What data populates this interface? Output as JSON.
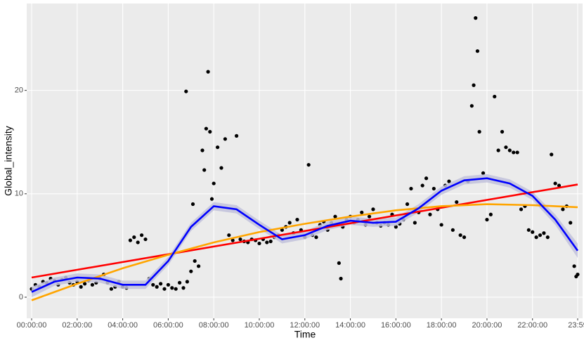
{
  "chart_data": {
    "type": "scatter",
    "x_label": "Time",
    "y_label": "Global_intensity",
    "xlim": [
      -13,
      1452
    ],
    "ylim": [
      -2.04,
      28.4
    ],
    "xticks": [
      {
        "value": 0,
        "label": "00:00:00"
      },
      {
        "value": 120,
        "label": "02:00:00"
      },
      {
        "value": 240,
        "label": "04:00:00"
      },
      {
        "value": 360,
        "label": "06:00:00"
      },
      {
        "value": 480,
        "label": "08:00:00"
      },
      {
        "value": 600,
        "label": "10:00:00"
      },
      {
        "value": 720,
        "label": "12:00:00"
      },
      {
        "value": 840,
        "label": "14:00:00"
      },
      {
        "value": 960,
        "label": "16:00:00"
      },
      {
        "value": 1080,
        "label": "18:00:00"
      },
      {
        "value": 1200,
        "label": "20:00:00"
      },
      {
        "value": 1320,
        "label": "22:00:00"
      },
      {
        "value": 1439,
        "label": "23:59"
      }
    ],
    "yticks": [
      0,
      10,
      20
    ],
    "grid": true,
    "points": {
      "color": "#000000",
      "x": [
        0,
        10,
        20,
        30,
        40,
        50,
        60,
        70,
        80,
        90,
        100,
        110,
        120,
        130,
        140,
        150,
        160,
        170,
        180,
        190,
        200,
        210,
        220,
        230,
        240,
        250,
        260,
        270,
        280,
        290,
        300,
        310,
        320,
        330,
        340,
        350,
        360,
        370,
        380,
        390,
        400,
        407,
        410,
        420,
        425,
        430,
        440,
        450,
        455,
        460,
        465,
        470,
        475,
        480,
        490,
        500,
        510,
        520,
        530,
        540,
        550,
        560,
        570,
        580,
        590,
        600,
        610,
        620,
        630,
        640,
        650,
        660,
        670,
        680,
        690,
        700,
        710,
        720,
        730,
        740,
        750,
        760,
        770,
        780,
        790,
        800,
        810,
        815,
        820,
        830,
        840,
        850,
        860,
        870,
        880,
        890,
        900,
        910,
        920,
        930,
        940,
        950,
        960,
        970,
        980,
        990,
        1000,
        1010,
        1020,
        1030,
        1040,
        1050,
        1060,
        1070,
        1080,
        1090,
        1100,
        1110,
        1120,
        1130,
        1140,
        1150,
        1160,
        1165,
        1170,
        1175,
        1180,
        1190,
        1200,
        1210,
        1220,
        1230,
        1240,
        1250,
        1260,
        1270,
        1280,
        1290,
        1300,
        1310,
        1320,
        1330,
        1340,
        1350,
        1360,
        1370,
        1380,
        1390,
        1400,
        1410,
        1420,
        1430,
        1435,
        1439
      ],
      "y": [
        0.8,
        1.2,
        1.0,
        1.5,
        1.4,
        1.8,
        1.6,
        1.2,
        1.7,
        1.9,
        1.4,
        1.2,
        1.5,
        1.0,
        1.3,
        1.6,
        1.2,
        1.4,
        1.8,
        2.2,
        1.4,
        0.8,
        1.0,
        1.5,
        1.0,
        0.9,
        5.5,
        5.8,
        5.3,
        6.0,
        5.6,
        1.8,
        1.2,
        1.0,
        1.3,
        0.8,
        1.2,
        0.9,
        0.8,
        1.4,
        0.9,
        19.9,
        1.5,
        2.5,
        9.0,
        3.5,
        3.0,
        14.2,
        12.3,
        16.3,
        21.8,
        16.0,
        9.5,
        11.0,
        14.5,
        12.5,
        15.3,
        6.0,
        5.5,
        15.6,
        5.6,
        5.4,
        5.3,
        5.6,
        5.5,
        5.2,
        5.6,
        5.3,
        5.4,
        5.8,
        6.0,
        6.5,
        6.8,
        7.2,
        6.2,
        7.5,
        6.5,
        5.8,
        12.8,
        6.0,
        5.8,
        7.0,
        7.3,
        6.5,
        7.2,
        7.8,
        3.3,
        1.8,
        6.8,
        7.5,
        7.8,
        7.2,
        7.5,
        8.2,
        7.0,
        7.8,
        8.5,
        7.2,
        6.9,
        7.2,
        7.0,
        8.0,
        6.8,
        7.1,
        7.5,
        9.0,
        10.5,
        7.2,
        8.2,
        10.8,
        11.5,
        8.0,
        10.5,
        8.5,
        7.0,
        10.8,
        11.2,
        6.5,
        9.2,
        6.0,
        5.8,
        11.2,
        18.5,
        20.5,
        27.0,
        23.8,
        16.0,
        12.0,
        7.5,
        8.0,
        19.4,
        14.2,
        16.0,
        14.5,
        14.2,
        14.0,
        14.0,
        8.5,
        8.8,
        6.5,
        6.3,
        5.8,
        6.0,
        6.2,
        5.8,
        13.8,
        11.0,
        10.8,
        8.5,
        8.8,
        7.2,
        3.0,
        2.0,
        2.2
      ]
    },
    "band": {
      "color": "#c2c2dc",
      "x": [
        0,
        60,
        120,
        180,
        240,
        300,
        360,
        420,
        480,
        540,
        600,
        660,
        720,
        780,
        840,
        900,
        960,
        1020,
        1080,
        1140,
        1200,
        1260,
        1320,
        1380,
        1439
      ],
      "lower": [
        0.0,
        1.1,
        1.5,
        1.4,
        0.8,
        0.8,
        3.1,
        6.4,
        8.4,
        8.1,
        6.6,
        5.2,
        5.6,
        6.5,
        7.0,
        6.8,
        6.9,
        8.2,
        9.9,
        10.9,
        11.1,
        10.6,
        9.4,
        7.0,
        3.8
      ],
      "upper": [
        1.0,
        1.9,
        2.3,
        2.2,
        1.6,
        1.6,
        3.9,
        7.2,
        9.2,
        8.9,
        7.4,
        6.0,
        6.4,
        7.3,
        7.8,
        7.6,
        7.7,
        9.0,
        10.7,
        11.7,
        11.9,
        11.4,
        10.2,
        8.0,
        5.2
      ]
    },
    "lines": [
      {
        "color": "#ff0000",
        "x": [
          0,
          1439
        ],
        "y": [
          1.9,
          10.9
        ]
      },
      {
        "color": "#ffa500",
        "x": [
          0,
          120,
          240,
          360,
          480,
          600,
          720,
          840,
          960,
          1080,
          1200,
          1320,
          1439
        ],
        "y": [
          -0.3,
          1.3,
          2.8,
          4.1,
          5.3,
          6.3,
          7.1,
          7.8,
          8.4,
          8.8,
          9.0,
          8.9,
          8.7
        ]
      },
      {
        "color": "#0000ff",
        "x": [
          0,
          60,
          120,
          180,
          240,
          300,
          360,
          420,
          480,
          540,
          600,
          660,
          720,
          780,
          840,
          900,
          960,
          1020,
          1080,
          1140,
          1200,
          1260,
          1320,
          1380,
          1439
        ],
        "y": [
          0.5,
          1.5,
          1.9,
          1.8,
          1.2,
          1.2,
          3.5,
          6.8,
          8.8,
          8.5,
          7.0,
          5.6,
          6.0,
          6.9,
          7.4,
          7.2,
          7.3,
          8.6,
          10.3,
          11.3,
          11.5,
          11.0,
          9.8,
          7.5,
          4.5
        ]
      }
    ]
  }
}
